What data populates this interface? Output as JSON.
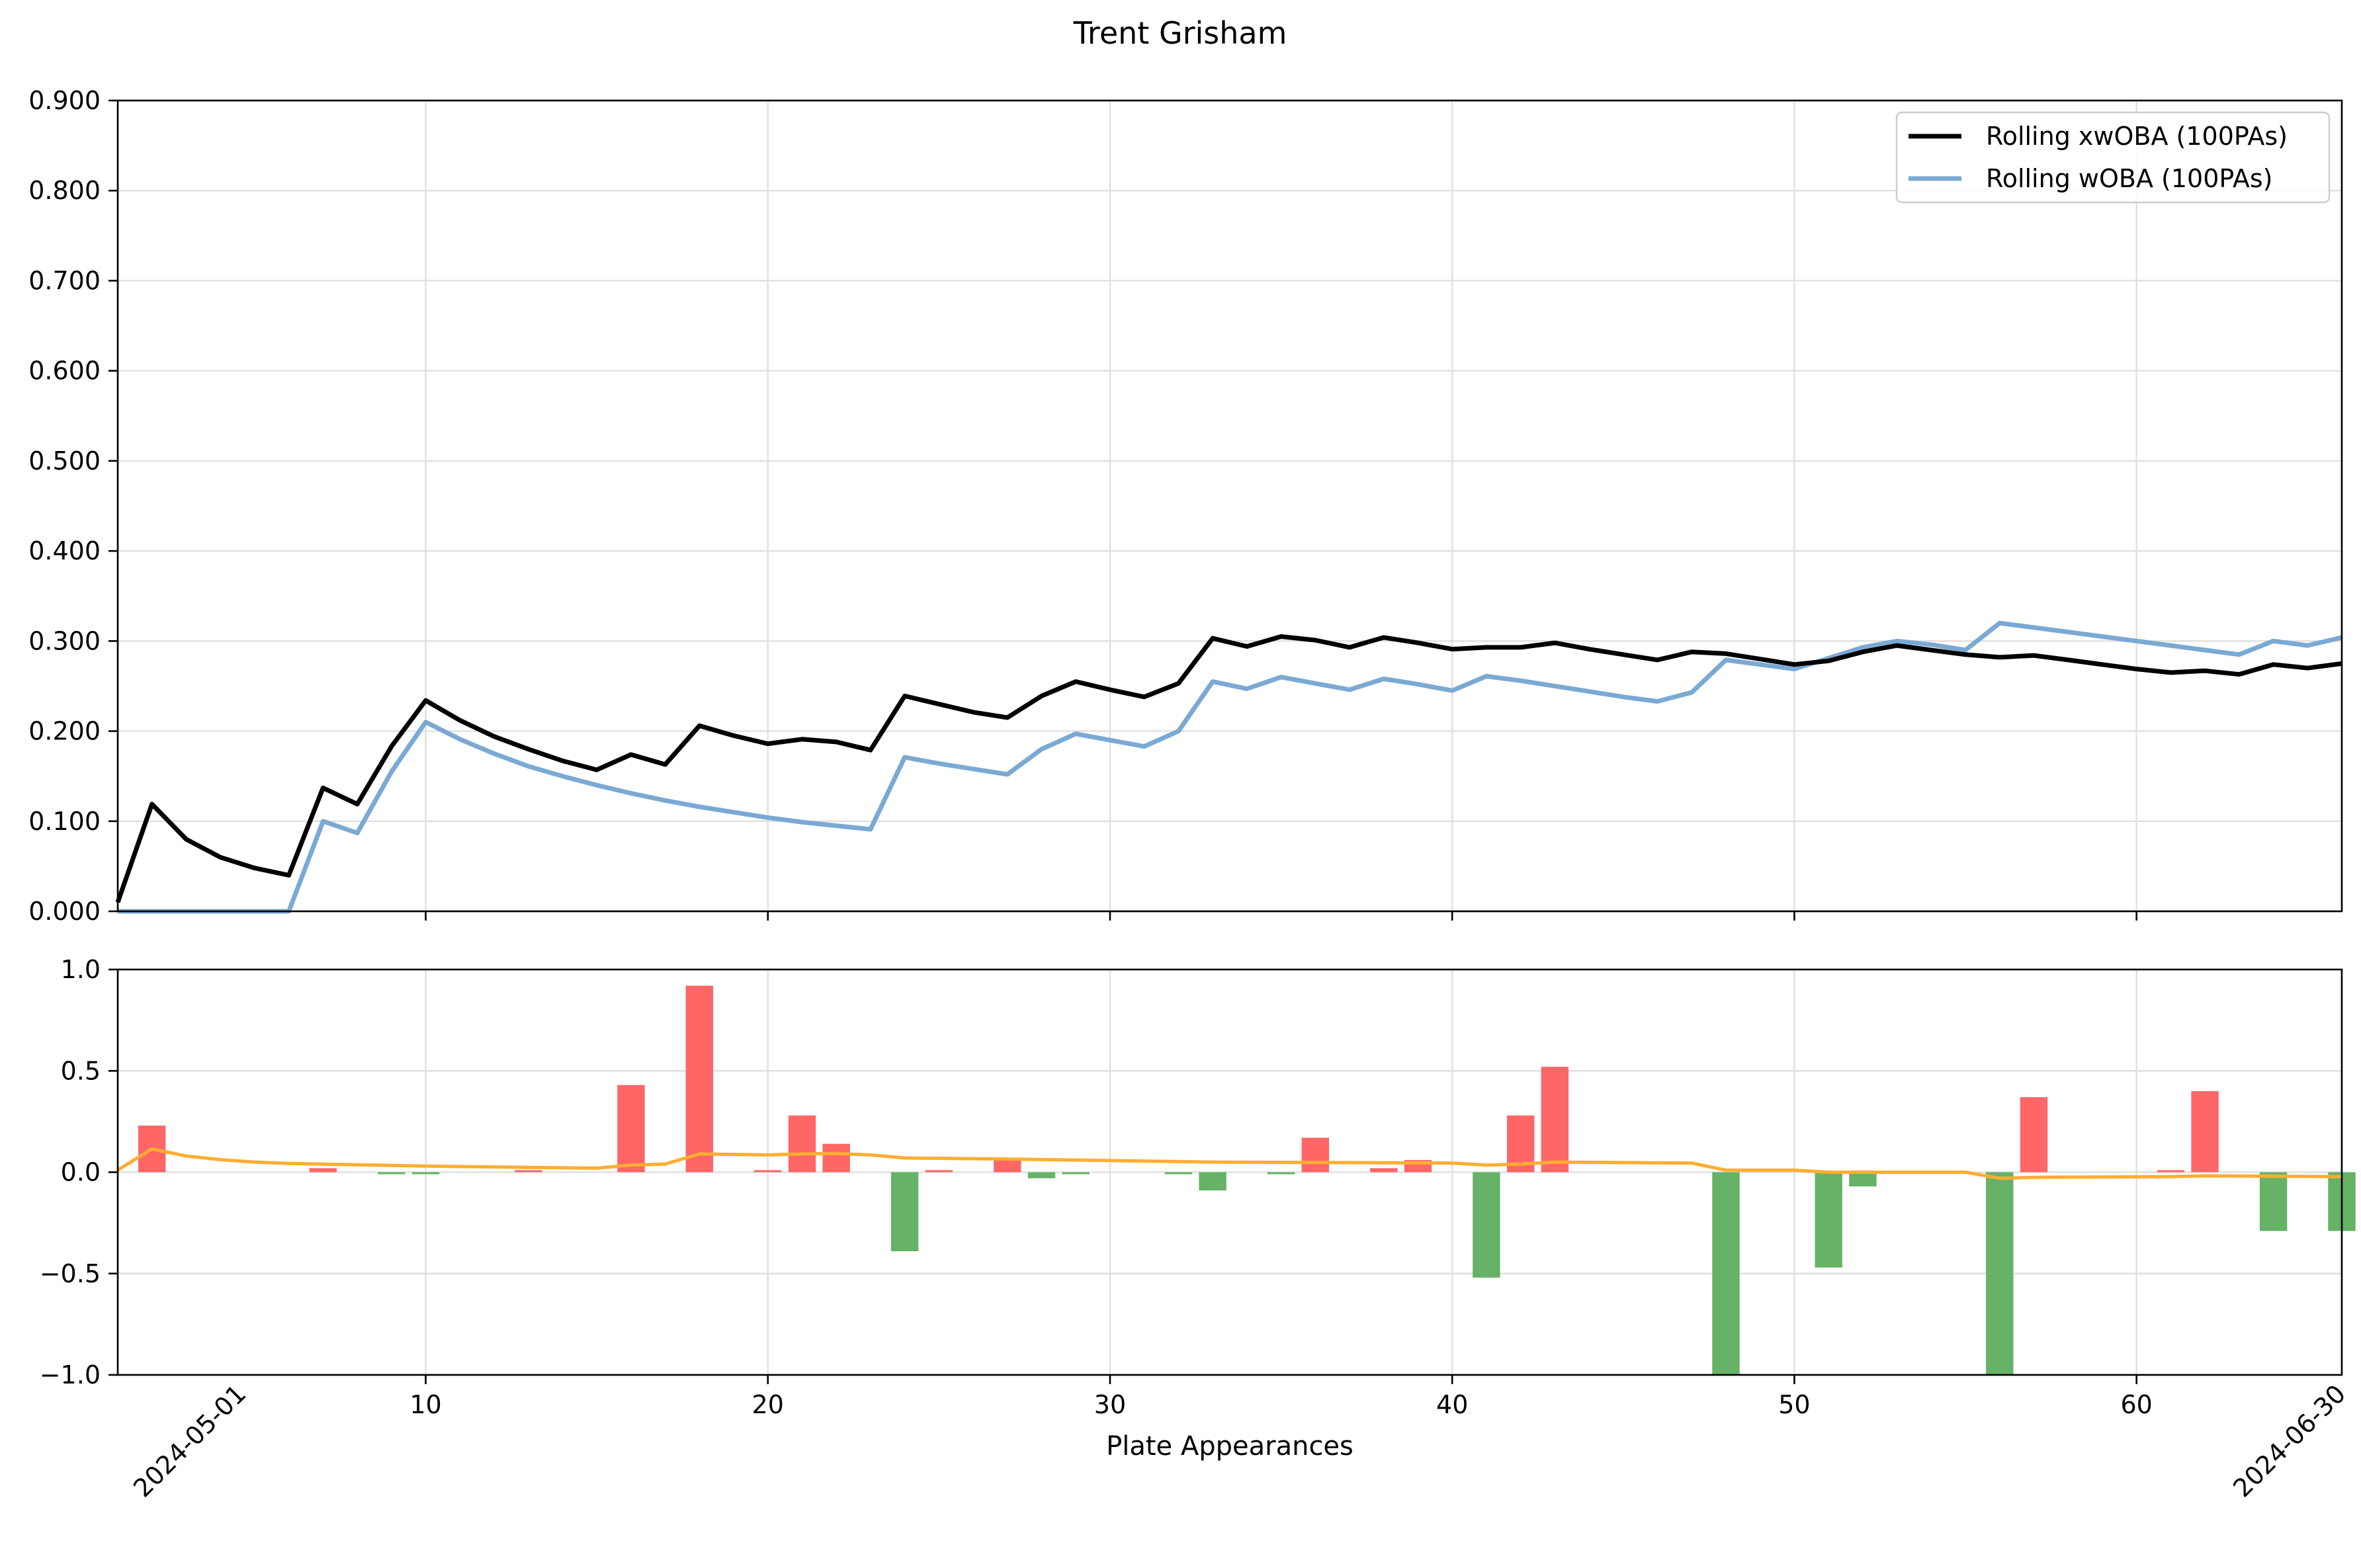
{
  "chart_data": {
    "title": "Trent Grisham",
    "xlabel": "Plate Appearances",
    "x_ticks": [
      10,
      20,
      30,
      40,
      50,
      60
    ],
    "date_labels": [
      "2024-05-01",
      "2024-06-30"
    ],
    "top_panel": {
      "type": "line",
      "ylim": [
        0,
        0.9
      ],
      "y_ticks": [
        "0.000",
        "0.100",
        "0.200",
        "0.300",
        "0.400",
        "0.500",
        "0.600",
        "0.700",
        "0.800",
        "0.900"
      ],
      "grid": true,
      "legend_position": "top-right",
      "series": [
        {
          "name": "Rolling xwOBA (100PAs)",
          "color": "#000000",
          "x": [
            1,
            2,
            3,
            4,
            5,
            6,
            7,
            8,
            9,
            10,
            11,
            12,
            13,
            14,
            15,
            16,
            17,
            18,
            19,
            20,
            21,
            22,
            23,
            24,
            25,
            26,
            27,
            28,
            29,
            30,
            31,
            32,
            33,
            34,
            35,
            36,
            37,
            38,
            39,
            40,
            41,
            42,
            43,
            44,
            45,
            46,
            47,
            48,
            49,
            50,
            51,
            52,
            53,
            54,
            55,
            56,
            57,
            58,
            59,
            60,
            61,
            62,
            63,
            64,
            65,
            66
          ],
          "values": [
            0.01,
            0.119,
            0.08,
            0.06,
            0.048,
            0.04,
            0.137,
            0.119,
            0.183,
            0.234,
            0.212,
            0.194,
            0.18,
            0.167,
            0.157,
            0.174,
            0.163,
            0.206,
            0.195,
            0.186,
            0.191,
            0.188,
            0.179,
            0.239,
            0.23,
            0.221,
            0.215,
            0.239,
            0.255,
            0.246,
            0.238,
            0.253,
            0.303,
            0.294,
            0.305,
            0.301,
            0.293,
            0.304,
            0.298,
            0.291,
            0.293,
            0.293,
            0.298,
            0.291,
            0.285,
            0.279,
            0.288,
            0.286,
            0.28,
            0.274,
            0.278,
            0.288,
            0.295,
            0.29,
            0.285,
            0.282,
            0.284,
            0.279,
            0.274,
            0.269,
            0.265,
            0.267,
            0.263,
            0.274,
            0.27,
            0.275
          ]
        },
        {
          "name": "Rolling wOBA (100PAs)",
          "color": "#7aa9d4",
          "x": [
            1,
            6,
            7,
            8,
            9,
            10,
            11,
            12,
            13,
            14,
            15,
            16,
            17,
            18,
            19,
            20,
            21,
            22,
            23,
            24,
            25,
            26,
            27,
            28,
            29,
            30,
            31,
            32,
            33,
            34,
            35,
            36,
            37,
            38,
            39,
            40,
            41,
            42,
            43,
            44,
            45,
            46,
            47,
            48,
            49,
            50,
            51,
            52,
            53,
            54,
            55,
            56,
            57,
            58,
            59,
            60,
            61,
            62,
            63,
            64,
            65,
            66
          ],
          "values": [
            0.0,
            0.0,
            0.1,
            0.087,
            0.155,
            0.21,
            0.191,
            0.175,
            0.161,
            0.15,
            0.14,
            0.131,
            0.123,
            0.116,
            0.11,
            0.104,
            0.099,
            0.095,
            0.091,
            0.171,
            0.164,
            0.158,
            0.152,
            0.18,
            0.197,
            0.19,
            0.183,
            0.2,
            0.255,
            0.247,
            0.26,
            0.253,
            0.246,
            0.258,
            0.252,
            0.245,
            0.261,
            0.256,
            0.25,
            0.244,
            0.238,
            0.233,
            0.243,
            0.279,
            0.274,
            0.269,
            0.281,
            0.293,
            0.3,
            0.296,
            0.29,
            0.32,
            0.315,
            0.31,
            0.305,
            0.3,
            0.295,
            0.29,
            0.285,
            0.3,
            0.295,
            0.304
          ]
        }
      ]
    },
    "bottom_panel": {
      "type": "bar",
      "ylim": [
        -1,
        1
      ],
      "y_ticks": [
        "1.0",
        "0.5",
        "0.0",
        "−0.5",
        "−1.0"
      ],
      "grid": true,
      "positive_color": "#ff6666",
      "negative_color": "#66b266",
      "bars": {
        "x": [
          2,
          7,
          9,
          10,
          13,
          16,
          18,
          20,
          21,
          22,
          24,
          25,
          27,
          28,
          29,
          32,
          33,
          35,
          36,
          38,
          39,
          41,
          42,
          43,
          48,
          51,
          52,
          56,
          57,
          61,
          62,
          64,
          66
        ],
        "values": [
          0.23,
          0.02,
          -0.01,
          -0.01,
          0.01,
          0.43,
          0.92,
          0.01,
          0.28,
          0.14,
          -0.39,
          0.01,
          0.06,
          -0.03,
          -0.01,
          -0.01,
          -0.09,
          -0.01,
          0.17,
          0.02,
          0.06,
          -0.52,
          0.28,
          0.52,
          -1.0,
          -0.47,
          -0.07,
          -1.0,
          0.37,
          0.01,
          0.4,
          -0.29,
          -0.29
        ]
      },
      "line": {
        "color": "#ffad33",
        "x": [
          1,
          2,
          3,
          4,
          5,
          6,
          10,
          15,
          16,
          17,
          18,
          20,
          21,
          22,
          23,
          24,
          27,
          33,
          40,
          41,
          42,
          43,
          47,
          48,
          50,
          51,
          55,
          56,
          57,
          61,
          62,
          66
        ],
        "values": [
          0.01,
          0.115,
          0.08,
          0.062,
          0.05,
          0.043,
          0.03,
          0.02,
          0.035,
          0.04,
          0.09,
          0.085,
          0.09,
          0.092,
          0.085,
          0.07,
          0.065,
          0.05,
          0.045,
          0.035,
          0.04,
          0.05,
          0.045,
          0.01,
          0.01,
          0.0,
          0.0,
          -0.03,
          -0.025,
          -0.022,
          -0.018,
          -0.022
        ]
      }
    }
  }
}
